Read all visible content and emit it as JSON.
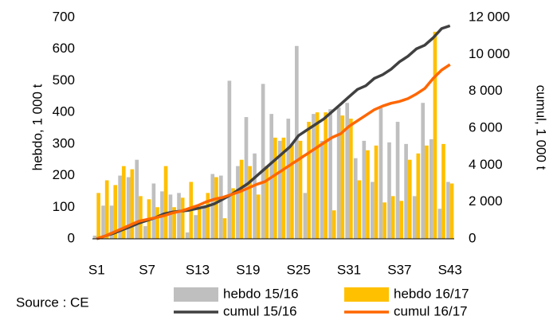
{
  "chart_data": {
    "type": "bar",
    "categories": [
      "S1",
      null,
      null,
      null,
      null,
      null,
      "S7",
      null,
      null,
      null,
      null,
      null,
      "S13",
      null,
      null,
      null,
      null,
      null,
      "S19",
      null,
      null,
      null,
      null,
      null,
      "S25",
      null,
      null,
      null,
      null,
      null,
      "S31",
      null,
      null,
      null,
      null,
      null,
      "S37",
      null,
      null,
      null,
      null,
      null,
      "S43"
    ],
    "series": [
      {
        "name": "hebdo 15/16",
        "type": "bar",
        "color": "#bfbfbf",
        "values": [
          10,
          105,
          105,
          200,
          195,
          250,
          40,
          175,
          150,
          140,
          145,
          20,
          75,
          105,
          205,
          200,
          500,
          230,
          385,
          270,
          490,
          395,
          310,
          380,
          610,
          145,
          395,
          310,
          410,
          415,
          430,
          255,
          310,
          180,
          415,
          305,
          370,
          300,
          135,
          430,
          315,
          95,
          180
        ]
      },
      {
        "name": "hebdo 16/17",
        "type": "bar",
        "color": "#ffc000",
        "values": [
          145,
          185,
          170,
          230,
          220,
          135,
          125,
          100,
          230,
          100,
          130,
          180,
          100,
          145,
          195,
          65,
          160,
          250,
          230,
          140,
          230,
          320,
          320,
          300,
          310,
          370,
          400,
          400,
          90,
          390,
          380,
          185,
          280,
          295,
          115,
          135,
          120,
          250,
          270,
          295,
          655,
          300,
          175
        ]
      },
      {
        "name": "cumul 15/16",
        "type": "line",
        "axis": "y2",
        "color": "#404040",
        "values": [
          0,
          150,
          300,
          480,
          650,
          850,
          1000,
          1150,
          1350,
          1450,
          1500,
          1550,
          1650,
          1750,
          1900,
          2150,
          2400,
          2700,
          3000,
          3400,
          3800,
          4200,
          4600,
          5000,
          5600,
          5900,
          6200,
          6500,
          6900,
          7300,
          7700,
          8100,
          8300,
          8700,
          8900,
          9200,
          9600,
          9900,
          10300,
          10500,
          10900,
          11400,
          11550
        ]
      },
      {
        "name": "cumul 16/17",
        "type": "line",
        "axis": "y2",
        "color": "#ff6600",
        "values": [
          0,
          150,
          350,
          550,
          750,
          950,
          1050,
          1150,
          1250,
          1400,
          1500,
          1650,
          1800,
          2000,
          2150,
          2250,
          2400,
          2550,
          2750,
          2950,
          3100,
          3400,
          3700,
          4000,
          4300,
          4600,
          4900,
          5200,
          5500,
          5700,
          6100,
          6400,
          6700,
          7000,
          7200,
          7350,
          7450,
          7600,
          7850,
          8150,
          8700,
          9150,
          9450
        ]
      }
    ],
    "ylabel": "hebdo, 1 000 t",
    "y2label": "cumul, 1 000 t",
    "ylim": [
      0,
      700
    ],
    "yticks": [
      0,
      100,
      200,
      300,
      400,
      500,
      600,
      700
    ],
    "y2lim": [
      0,
      12000
    ],
    "y2ticks": [
      0,
      {
        "value": 2000,
        "label": "2 000"
      },
      {
        "value": 4000,
        "label": "4 000"
      },
      {
        "value": 6000,
        "label": "6 000"
      },
      {
        "value": 8000,
        "label": "8 000"
      },
      {
        "value": 10000,
        "label": "10 000"
      },
      {
        "value": 12000,
        "label": "12 000"
      }
    ],
    "source": "Source : CE",
    "grid": false
  }
}
